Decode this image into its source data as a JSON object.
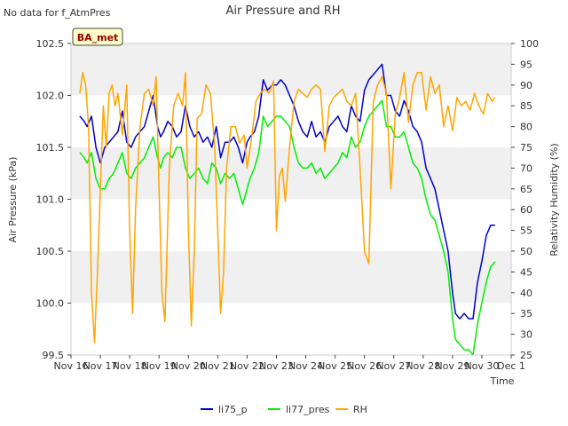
{
  "status_text": "No data for f_AtmPres",
  "site_label": "BA_met",
  "chart_data": {
    "type": "line",
    "title": "Air Pressure and RH",
    "xlabel": "Time",
    "ylabel": "Air Pressure (kPa)",
    "y2label": "Relativity Humidity (%)",
    "x_ticks": [
      "Nov 16",
      "Nov 17",
      "Nov 18",
      "Nov 19",
      "Nov 20",
      "Nov 21",
      "Nov 22",
      "Nov 23",
      "Nov 24",
      "Nov 25",
      "Nov 26",
      "Nov 27",
      "Nov 28",
      "Nov 29",
      "Nov 30",
      "Dec 1"
    ],
    "xlim": [
      0,
      15
    ],
    "ylim": [
      99.5,
      102.5
    ],
    "y_ticks": [
      "99.5",
      "100.0",
      "100.5",
      "101.0",
      "101.5",
      "102.0",
      "102.5"
    ],
    "y2lim": [
      25,
      100
    ],
    "y2_ticks": [
      "25",
      "30",
      "35",
      "40",
      "45",
      "50",
      "55",
      "60",
      "65",
      "70",
      "75",
      "80",
      "85",
      "90",
      "95",
      "100"
    ],
    "grid": "horizontal bands",
    "legend_position": "bottom-center",
    "series": [
      {
        "name": "li75_p",
        "color": "#0000cc",
        "axis": "left",
        "x": [
          0.3,
          0.45,
          0.55,
          0.7,
          0.85,
          1.0,
          1.15,
          1.3,
          1.45,
          1.6,
          1.75,
          1.9,
          2.05,
          2.2,
          2.35,
          2.5,
          2.65,
          2.8,
          2.95,
          3.05,
          3.15,
          3.3,
          3.45,
          3.6,
          3.75,
          3.9,
          4.05,
          4.2,
          4.35,
          4.5,
          4.65,
          4.8,
          4.95,
          5.1,
          5.25,
          5.4,
          5.55,
          5.7,
          5.85,
          6.0,
          6.1,
          6.25,
          6.4,
          6.55,
          6.7,
          6.85,
          7.0,
          7.15,
          7.3,
          7.45,
          7.6,
          7.75,
          7.9,
          8.05,
          8.2,
          8.35,
          8.5,
          8.65,
          8.8,
          8.95,
          9.1,
          9.25,
          9.4,
          9.55,
          9.7,
          9.85,
          10.0,
          10.15,
          10.3,
          10.45,
          10.6,
          10.75,
          10.9,
          11.05,
          11.2,
          11.35,
          11.5,
          11.65,
          11.8,
          11.95,
          12.1,
          12.25,
          12.4,
          12.55,
          12.7,
          12.85,
          13.0,
          13.1,
          13.25,
          13.4,
          13.55,
          13.7,
          13.85,
          14.0,
          14.15,
          14.3,
          14.45
        ],
        "values": [
          101.8,
          101.75,
          101.7,
          101.8,
          101.5,
          101.35,
          101.5,
          101.55,
          101.6,
          101.65,
          101.85,
          101.55,
          101.5,
          101.6,
          101.65,
          101.7,
          101.85,
          102.0,
          101.7,
          101.6,
          101.65,
          101.75,
          101.7,
          101.6,
          101.65,
          101.9,
          101.7,
          101.6,
          101.65,
          101.55,
          101.6,
          101.5,
          101.7,
          101.4,
          101.55,
          101.55,
          101.6,
          101.5,
          101.35,
          101.55,
          101.6,
          101.65,
          101.8,
          102.15,
          102.05,
          102.1,
          102.1,
          102.15,
          102.1,
          102.0,
          101.9,
          101.75,
          101.65,
          101.6,
          101.75,
          101.6,
          101.65,
          101.55,
          101.7,
          101.75,
          101.8,
          101.7,
          101.65,
          101.9,
          101.8,
          101.75,
          102.05,
          102.15,
          102.2,
          102.25,
          102.3,
          102.0,
          102.0,
          101.85,
          101.8,
          101.95,
          101.85,
          101.7,
          101.65,
          101.55,
          101.3,
          101.2,
          101.1,
          100.9,
          100.7,
          100.5,
          100.1,
          99.9,
          99.85,
          99.9,
          99.85,
          99.85,
          100.2,
          100.4,
          100.65,
          100.75,
          100.75
        ]
      },
      {
        "name": "li77_pres",
        "color": "#00ee00",
        "axis": "left",
        "x": [
          0.3,
          0.45,
          0.55,
          0.7,
          0.85,
          1.0,
          1.15,
          1.3,
          1.45,
          1.6,
          1.75,
          1.9,
          2.05,
          2.2,
          2.35,
          2.5,
          2.65,
          2.8,
          2.95,
          3.05,
          3.15,
          3.3,
          3.45,
          3.6,
          3.75,
          3.9,
          4.05,
          4.2,
          4.35,
          4.5,
          4.65,
          4.8,
          4.95,
          5.1,
          5.25,
          5.4,
          5.55,
          5.7,
          5.85,
          6.0,
          6.1,
          6.25,
          6.4,
          6.55,
          6.7,
          6.85,
          7.0,
          7.15,
          7.3,
          7.45,
          7.6,
          7.75,
          7.9,
          8.05,
          8.2,
          8.35,
          8.5,
          8.65,
          8.8,
          8.95,
          9.1,
          9.25,
          9.4,
          9.55,
          9.7,
          9.85,
          10.0,
          10.15,
          10.3,
          10.45,
          10.6,
          10.75,
          10.9,
          11.05,
          11.2,
          11.35,
          11.5,
          11.65,
          11.8,
          11.95,
          12.1,
          12.25,
          12.4,
          12.55,
          12.7,
          12.85,
          13.0,
          13.1,
          13.25,
          13.4,
          13.55,
          13.7,
          13.85,
          14.0,
          14.15,
          14.3,
          14.45
        ],
        "values": [
          101.45,
          101.4,
          101.35,
          101.45,
          101.2,
          101.1,
          101.1,
          101.2,
          101.25,
          101.35,
          101.45,
          101.25,
          101.2,
          101.3,
          101.35,
          101.4,
          101.5,
          101.6,
          101.4,
          101.3,
          101.4,
          101.45,
          101.4,
          101.5,
          101.5,
          101.3,
          101.2,
          101.25,
          101.3,
          101.2,
          101.15,
          101.35,
          101.3,
          101.15,
          101.25,
          101.2,
          101.25,
          101.1,
          100.95,
          101.1,
          101.2,
          101.3,
          101.45,
          101.8,
          101.7,
          101.75,
          101.8,
          101.8,
          101.75,
          101.7,
          101.5,
          101.35,
          101.3,
          101.3,
          101.35,
          101.25,
          101.3,
          101.2,
          101.25,
          101.3,
          101.35,
          101.45,
          101.4,
          101.6,
          101.5,
          101.55,
          101.7,
          101.8,
          101.85,
          101.9,
          101.95,
          101.7,
          101.7,
          101.6,
          101.6,
          101.65,
          101.5,
          101.35,
          101.3,
          101.2,
          101.0,
          100.85,
          100.8,
          100.65,
          100.5,
          100.3,
          99.85,
          99.65,
          99.6,
          99.55,
          99.55,
          99.5,
          99.8,
          100.0,
          100.2,
          100.35,
          100.4
        ]
      },
      {
        "name": "RH",
        "color": "#ffa500",
        "axis": "right",
        "x": [
          0.3,
          0.4,
          0.5,
          0.6,
          0.7,
          0.8,
          0.9,
          1.0,
          1.1,
          1.2,
          1.3,
          1.4,
          1.5,
          1.6,
          1.75,
          1.9,
          2.0,
          2.1,
          2.2,
          2.35,
          2.5,
          2.65,
          2.8,
          2.9,
          3.0,
          3.1,
          3.2,
          3.35,
          3.5,
          3.65,
          3.8,
          3.9,
          4.0,
          4.1,
          4.2,
          4.3,
          4.45,
          4.6,
          4.75,
          4.9,
          5.0,
          5.1,
          5.2,
          5.3,
          5.45,
          5.6,
          5.75,
          5.9,
          6.0,
          6.15,
          6.3,
          6.45,
          6.6,
          6.75,
          6.9,
          7.0,
          7.1,
          7.2,
          7.3,
          7.45,
          7.6,
          7.75,
          7.9,
          8.05,
          8.2,
          8.35,
          8.5,
          8.65,
          8.8,
          8.95,
          9.1,
          9.25,
          9.4,
          9.55,
          9.7,
          9.85,
          10.0,
          10.15,
          10.3,
          10.45,
          10.6,
          10.75,
          10.9,
          11.05,
          11.2,
          11.35,
          11.5,
          11.65,
          11.8,
          11.95,
          12.1,
          12.25,
          12.4,
          12.55,
          12.7,
          12.85,
          13.0,
          13.15,
          13.3,
          13.45,
          13.6,
          13.75,
          13.9,
          14.05,
          14.2,
          14.35,
          14.45
        ],
        "values": [
          88,
          93,
          90,
          80,
          40,
          28,
          45,
          65,
          85,
          75,
          88,
          90,
          85,
          88,
          78,
          90,
          55,
          35,
          60,
          80,
          88,
          89,
          85,
          92,
          65,
          40,
          33,
          70,
          85,
          88,
          85,
          93,
          55,
          32,
          50,
          82,
          83,
          90,
          88,
          75,
          55,
          35,
          45,
          70,
          80,
          80,
          76,
          78,
          70,
          77,
          86,
          88,
          89,
          88,
          91,
          55,
          68,
          70,
          62,
          75,
          86,
          89,
          88,
          87,
          89,
          90,
          89,
          74,
          85,
          87,
          88,
          89,
          86,
          85,
          88,
          70,
          50,
          47,
          86,
          90,
          92,
          88,
          65,
          83,
          87,
          93,
          81,
          90,
          93,
          93,
          84,
          92,
          88,
          90,
          80,
          85,
          79,
          87,
          85,
          86,
          84,
          88,
          85,
          83,
          88,
          86,
          87
        ]
      }
    ]
  }
}
